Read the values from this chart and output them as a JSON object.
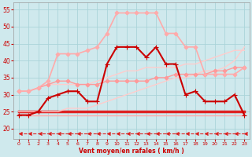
{
  "background_color": "#cfe9ed",
  "grid_color": "#aad4d9",
  "xlabel": "Vent moyen/en rafales ( km/h )",
  "xlabel_color": "#cc0000",
  "tick_color": "#cc0000",
  "x_ticks": [
    0,
    1,
    2,
    3,
    4,
    5,
    6,
    7,
    8,
    9,
    10,
    11,
    12,
    13,
    14,
    15,
    16,
    17,
    18,
    19,
    20,
    21,
    22,
    23
  ],
  "ylim": [
    17,
    57
  ],
  "yticks": [
    20,
    25,
    30,
    35,
    40,
    45,
    50,
    55
  ],
  "lines": [
    {
      "name": "arrow_dashed",
      "x": [
        0,
        1,
        2,
        3,
        4,
        5,
        6,
        7,
        8,
        9,
        10,
        11,
        12,
        13,
        14,
        15,
        16,
        17,
        18,
        19,
        20,
        21,
        22,
        23
      ],
      "y": [
        18.5,
        18.5,
        18.5,
        18.5,
        18.5,
        18.5,
        18.5,
        18.5,
        18.5,
        18.5,
        18.5,
        18.5,
        18.5,
        18.5,
        18.5,
        18.5,
        18.5,
        18.5,
        18.5,
        18.5,
        18.5,
        18.5,
        18.5,
        18.5
      ],
      "color": "#dd2222",
      "lw": 0.8,
      "ls": "--",
      "marker": 4,
      "ms": 3.5,
      "zorder": 3
    },
    {
      "name": "flat_red_thick",
      "x": [
        0,
        1,
        2,
        3,
        4,
        5,
        6,
        7,
        8,
        9,
        10,
        11,
        12,
        13,
        14,
        15,
        16,
        17,
        18,
        19,
        20,
        21,
        22,
        23
      ],
      "y": [
        25,
        25,
        25,
        25,
        25,
        25,
        25,
        25,
        25,
        25,
        25,
        25,
        25,
        25,
        25,
        25,
        25,
        25,
        25,
        25,
        25,
        25,
        25,
        25
      ],
      "color": "#dd2222",
      "lw": 2.5,
      "ls": "-",
      "marker": null,
      "ms": 0,
      "zorder": 2
    },
    {
      "name": "flat_pink_thin",
      "x": [
        0,
        1,
        2,
        3,
        4,
        5,
        6,
        7,
        8,
        9,
        10,
        11,
        12,
        13,
        14,
        15,
        16,
        17,
        18,
        19,
        20,
        21,
        22,
        23
      ],
      "y": [
        24,
        24,
        24,
        24,
        24,
        24,
        24,
        24,
        24,
        24,
        24,
        24,
        24,
        24,
        24,
        24,
        24,
        24,
        24,
        24,
        24,
        24,
        24,
        24
      ],
      "color": "#ffaaaa",
      "lw": 1.0,
      "ls": "-",
      "marker": null,
      "ms": 0,
      "zorder": 2
    },
    {
      "name": "rising_pale1",
      "x": [
        0,
        1,
        2,
        3,
        4,
        5,
        6,
        7,
        8,
        9,
        10,
        11,
        12,
        13,
        14,
        15,
        16,
        17,
        18,
        19,
        20,
        21,
        22,
        23
      ],
      "y": [
        25,
        25,
        25,
        25,
        25,
        26,
        26,
        26,
        27,
        28,
        29,
        30,
        31,
        32,
        33,
        34,
        35,
        35,
        36,
        37,
        37,
        38,
        40,
        44
      ],
      "color": "#ffcccc",
      "lw": 1.0,
      "ls": "-",
      "marker": null,
      "ms": 0,
      "zorder": 2
    },
    {
      "name": "rising_pale2",
      "x": [
        0,
        1,
        2,
        3,
        4,
        5,
        6,
        7,
        8,
        9,
        10,
        11,
        12,
        13,
        14,
        15,
        16,
        17,
        18,
        19,
        20,
        21,
        22,
        23
      ],
      "y": [
        31,
        31,
        32,
        33,
        33,
        33,
        33,
        33,
        34,
        35,
        36,
        37,
        37,
        38,
        38,
        38,
        38,
        39,
        39,
        40,
        41,
        42,
        43,
        43
      ],
      "color": "#ffcccc",
      "lw": 1.0,
      "ls": "-",
      "marker": null,
      "ms": 0,
      "zorder": 2
    },
    {
      "name": "pink_diamond_low",
      "x": [
        0,
        1,
        2,
        3,
        4,
        5,
        6,
        7,
        8,
        9,
        10,
        11,
        12,
        13,
        14,
        15,
        16,
        17,
        18,
        19,
        20,
        21,
        22,
        23
      ],
      "y": [
        31,
        31,
        32,
        33,
        34,
        34,
        33,
        33,
        33,
        34,
        34,
        34,
        34,
        34,
        35,
        35,
        36,
        36,
        36,
        36,
        37,
        37,
        38,
        38
      ],
      "color": "#ff9999",
      "lw": 1.0,
      "ls": "-",
      "marker": "D",
      "ms": 2.5,
      "zorder": 3
    },
    {
      "name": "pink_diamond_high",
      "x": [
        0,
        1,
        2,
        3,
        4,
        5,
        6,
        7,
        8,
        9,
        10,
        11,
        12,
        13,
        14,
        15,
        16,
        17,
        18,
        19,
        20,
        21,
        22,
        23
      ],
      "y": [
        31,
        31,
        32,
        34,
        42,
        42,
        42,
        43,
        44,
        48,
        54,
        54,
        54,
        54,
        54,
        48,
        48,
        44,
        44,
        36,
        36,
        36,
        36,
        38
      ],
      "color": "#ffaaaa",
      "lw": 1.2,
      "ls": "-",
      "marker": "D",
      "ms": 2.5,
      "zorder": 3
    },
    {
      "name": "red_main_markers",
      "x": [
        0,
        1,
        2,
        3,
        4,
        5,
        6,
        7,
        8,
        9,
        10,
        11,
        12,
        13,
        14,
        15,
        16,
        17,
        18,
        19,
        20,
        21,
        22,
        23
      ],
      "y": [
        24,
        24,
        25,
        29,
        30,
        31,
        31,
        28,
        28,
        39,
        44,
        44,
        44,
        41,
        44,
        39,
        39,
        30,
        31,
        28,
        28,
        28,
        30,
        24
      ],
      "color": "#cc0000",
      "lw": 1.5,
      "ls": "-",
      "marker": "+",
      "ms": 4,
      "zorder": 4
    }
  ]
}
